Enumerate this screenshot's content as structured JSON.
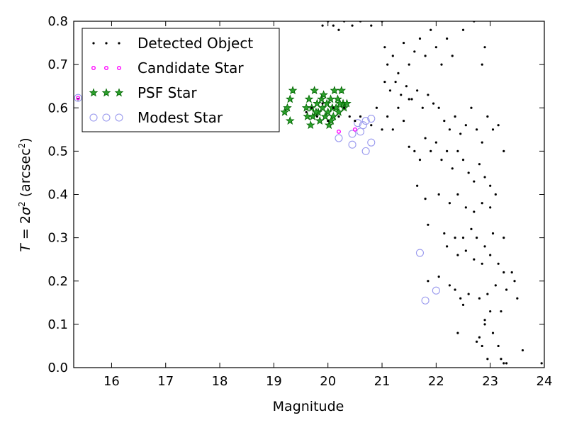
{
  "chart_data": {
    "type": "scatter",
    "title": "",
    "xlabel": "Magnitude",
    "ylabel_parts": {
      "lhs": "T",
      "eq": " = 2",
      "sigma": "σ",
      "sup": "2",
      "open": " (arcsec",
      "close": ")"
    },
    "xlim": [
      15.3,
      24
    ],
    "ylim": [
      0,
      0.8
    ],
    "xticks": [
      "16",
      "17",
      "18",
      "19",
      "20",
      "21",
      "22",
      "23",
      "24"
    ],
    "yticks": [
      "0.0",
      "0.1",
      "0.2",
      "0.3",
      "0.4",
      "0.5",
      "0.6",
      "0.7",
      "0.8"
    ],
    "legend_position": "top-left",
    "colors": {
      "detected": "#000000",
      "candidate": "#ff00ff",
      "psf_fill": "#2ca02c",
      "psf_edge": "#006400",
      "modest": "#9999ee"
    },
    "series": [
      {
        "name": "Detected Object",
        "marker": "dot",
        "points": [
          [
            15.38,
            0.62
          ],
          [
            19.6,
            0.59
          ],
          [
            19.7,
            0.6
          ],
          [
            19.8,
            0.58
          ],
          [
            19.9,
            0.61
          ],
          [
            20.0,
            0.57
          ],
          [
            20.1,
            0.6
          ],
          [
            20.2,
            0.58
          ],
          [
            20.3,
            0.6
          ],
          [
            20.4,
            0.58
          ],
          [
            20.5,
            0.57
          ],
          [
            20.6,
            0.58
          ],
          [
            20.8,
            0.56
          ],
          [
            20.9,
            0.6
          ],
          [
            21.0,
            0.55
          ],
          [
            21.1,
            0.58
          ],
          [
            21.2,
            0.55
          ],
          [
            21.3,
            0.6
          ],
          [
            21.4,
            0.57
          ],
          [
            21.5,
            0.62
          ],
          [
            19.9,
            0.79
          ],
          [
            20.0,
            0.8
          ],
          [
            20.1,
            0.79
          ],
          [
            20.2,
            0.78
          ],
          [
            20.3,
            0.8
          ],
          [
            20.45,
            0.79
          ],
          [
            20.6,
            0.8
          ],
          [
            20.8,
            0.79
          ],
          [
            21.0,
            0.8
          ],
          [
            21.05,
            0.74
          ],
          [
            21.1,
            0.7
          ],
          [
            21.2,
            0.72
          ],
          [
            21.3,
            0.68
          ],
          [
            21.4,
            0.75
          ],
          [
            21.5,
            0.7
          ],
          [
            21.6,
            0.73
          ],
          [
            21.7,
            0.76
          ],
          [
            21.8,
            0.72
          ],
          [
            21.9,
            0.78
          ],
          [
            22.0,
            0.74
          ],
          [
            22.1,
            0.7
          ],
          [
            22.2,
            0.76
          ],
          [
            22.3,
            0.72
          ],
          [
            22.5,
            0.78
          ],
          [
            22.7,
            0.8
          ],
          [
            22.85,
            0.7
          ],
          [
            22.9,
            0.74
          ],
          [
            21.05,
            0.66
          ],
          [
            21.15,
            0.64
          ],
          [
            21.25,
            0.66
          ],
          [
            21.35,
            0.63
          ],
          [
            21.45,
            0.65
          ],
          [
            21.55,
            0.62
          ],
          [
            21.65,
            0.64
          ],
          [
            21.75,
            0.6
          ],
          [
            21.85,
            0.63
          ],
          [
            21.95,
            0.61
          ],
          [
            22.05,
            0.6
          ],
          [
            22.15,
            0.57
          ],
          [
            22.25,
            0.55
          ],
          [
            22.35,
            0.58
          ],
          [
            22.45,
            0.54
          ],
          [
            22.55,
            0.56
          ],
          [
            22.65,
            0.6
          ],
          [
            22.75,
            0.55
          ],
          [
            22.85,
            0.52
          ],
          [
            22.95,
            0.58
          ],
          [
            23.05,
            0.55
          ],
          [
            23.15,
            0.56
          ],
          [
            23.25,
            0.5
          ],
          [
            21.5,
            0.51
          ],
          [
            21.6,
            0.5
          ],
          [
            21.7,
            0.48
          ],
          [
            21.8,
            0.53
          ],
          [
            21.9,
            0.5
          ],
          [
            22.0,
            0.52
          ],
          [
            22.1,
            0.48
          ],
          [
            22.2,
            0.5
          ],
          [
            22.3,
            0.46
          ],
          [
            22.4,
            0.5
          ],
          [
            22.5,
            0.48
          ],
          [
            22.6,
            0.45
          ],
          [
            22.7,
            0.43
          ],
          [
            22.8,
            0.47
          ],
          [
            22.9,
            0.44
          ],
          [
            23.0,
            0.42
          ],
          [
            21.65,
            0.42
          ],
          [
            21.8,
            0.39
          ],
          [
            22.05,
            0.4
          ],
          [
            22.25,
            0.38
          ],
          [
            22.4,
            0.4
          ],
          [
            22.55,
            0.37
          ],
          [
            22.7,
            0.36
          ],
          [
            22.85,
            0.38
          ],
          [
            23.0,
            0.37
          ],
          [
            23.1,
            0.4
          ],
          [
            21.85,
            0.33
          ],
          [
            22.15,
            0.31
          ],
          [
            22.35,
            0.3
          ],
          [
            22.5,
            0.3
          ],
          [
            22.65,
            0.32
          ],
          [
            22.75,
            0.3
          ],
          [
            22.9,
            0.28
          ],
          [
            23.05,
            0.31
          ],
          [
            23.25,
            0.3
          ],
          [
            22.2,
            0.28
          ],
          [
            22.4,
            0.26
          ],
          [
            22.55,
            0.27
          ],
          [
            22.7,
            0.25
          ],
          [
            22.85,
            0.24
          ],
          [
            23.0,
            0.26
          ],
          [
            23.15,
            0.24
          ],
          [
            21.85,
            0.2
          ],
          [
            22.05,
            0.21
          ],
          [
            22.25,
            0.19
          ],
          [
            22.35,
            0.18
          ],
          [
            22.45,
            0.16
          ],
          [
            22.6,
            0.17
          ],
          [
            22.8,
            0.16
          ],
          [
            22.95,
            0.17
          ],
          [
            23.1,
            0.19
          ],
          [
            23.25,
            0.22
          ],
          [
            23.4,
            0.22
          ],
          [
            23.45,
            0.2
          ],
          [
            23.3,
            0.18
          ],
          [
            23.5,
            0.16
          ],
          [
            22.5,
            0.145
          ],
          [
            22.4,
            0.08
          ],
          [
            22.8,
            0.07
          ],
          [
            22.9,
            0.1
          ],
          [
            23.0,
            0.13
          ],
          [
            23.2,
            0.13
          ],
          [
            23.05,
            0.08
          ],
          [
            23.15,
            0.05
          ],
          [
            22.85,
            0.05
          ],
          [
            22.95,
            0.02
          ],
          [
            23.2,
            0.02
          ],
          [
            23.3,
            0.01
          ],
          [
            23.6,
            0.04
          ],
          [
            23.95,
            0.01
          ],
          [
            22.75,
            0.06
          ],
          [
            22.9,
            0.11
          ],
          [
            23.25,
            0.01
          ]
        ]
      },
      {
        "name": "Candidate Star",
        "marker": "small-circle",
        "points": [
          [
            15.38,
            0.623
          ],
          [
            20.5,
            0.55
          ],
          [
            20.2,
            0.545
          ]
        ]
      },
      {
        "name": "PSF Star",
        "marker": "star",
        "points": [
          [
            19.2,
            0.59
          ],
          [
            19.25,
            0.6
          ],
          [
            19.3,
            0.62
          ],
          [
            19.3,
            0.57
          ],
          [
            19.35,
            0.64
          ],
          [
            19.6,
            0.6
          ],
          [
            19.62,
            0.58
          ],
          [
            19.65,
            0.62
          ],
          [
            19.7,
            0.6
          ],
          [
            19.72,
            0.58
          ],
          [
            19.75,
            0.64
          ],
          [
            19.8,
            0.61
          ],
          [
            19.82,
            0.59
          ],
          [
            19.85,
            0.57
          ],
          [
            19.88,
            0.62
          ],
          [
            19.9,
            0.6
          ],
          [
            19.95,
            0.58
          ],
          [
            19.98,
            0.61
          ],
          [
            20.0,
            0.59
          ],
          [
            20.02,
            0.56
          ],
          [
            20.05,
            0.62
          ],
          [
            20.08,
            0.6
          ],
          [
            20.1,
            0.58
          ],
          [
            20.12,
            0.64
          ],
          [
            20.15,
            0.6
          ],
          [
            20.18,
            0.62
          ],
          [
            20.2,
            0.59
          ],
          [
            20.25,
            0.64
          ],
          [
            20.28,
            0.61
          ],
          [
            20.3,
            0.6
          ],
          [
            20.35,
            0.61
          ],
          [
            19.68,
            0.56
          ],
          [
            19.92,
            0.63
          ],
          [
            20.06,
            0.57
          ],
          [
            19.78,
            0.59
          ],
          [
            20.22,
            0.61
          ]
        ]
      },
      {
        "name": "Modest Star",
        "marker": "open-circle",
        "points": [
          [
            15.38,
            0.623
          ],
          [
            20.2,
            0.53
          ],
          [
            20.45,
            0.515
          ],
          [
            20.45,
            0.54
          ],
          [
            20.6,
            0.545
          ],
          [
            20.7,
            0.5
          ],
          [
            20.8,
            0.52
          ],
          [
            20.55,
            0.565
          ],
          [
            20.7,
            0.57
          ],
          [
            20.8,
            0.575
          ],
          [
            20.65,
            0.56
          ],
          [
            21.7,
            0.265
          ],
          [
            22.0,
            0.178
          ],
          [
            21.8,
            0.155
          ]
        ]
      }
    ],
    "legend": [
      "Detected Object",
      "Candidate Star",
      "PSF Star",
      "Modest Star"
    ]
  }
}
